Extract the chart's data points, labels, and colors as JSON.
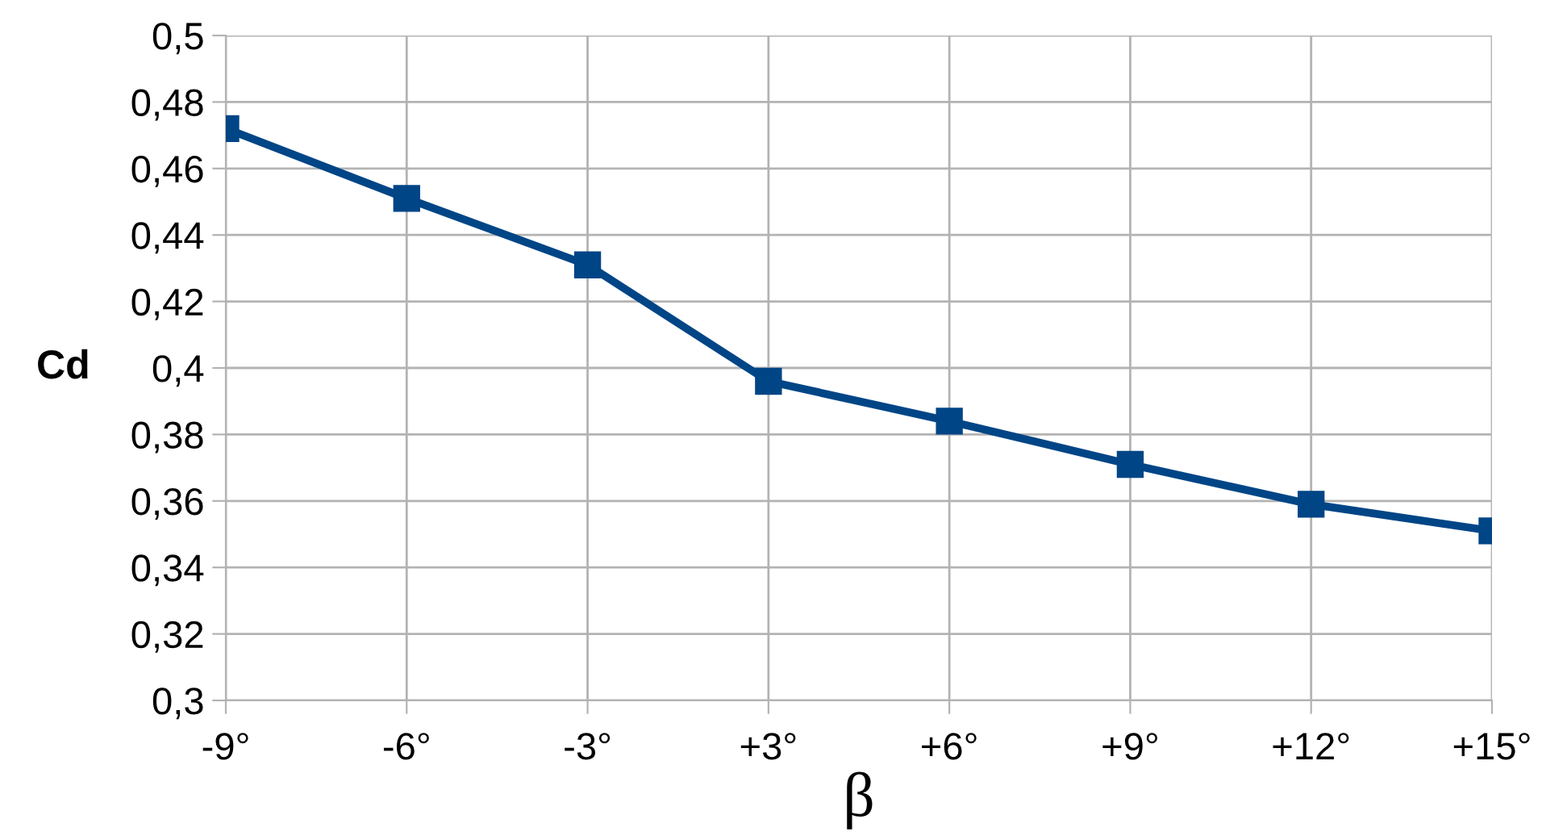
{
  "chart_data": {
    "type": "line",
    "xlabel": "β",
    "ylabel": "Cd",
    "categories": [
      "-9°",
      "-6°",
      "-3°",
      "+3°",
      "+6°",
      "+9°",
      "+12°",
      "+15°"
    ],
    "series": [
      {
        "color": "#004586",
        "values": [
          0.472,
          0.451,
          0.431,
          0.396,
          0.384,
          0.371,
          0.359,
          0.351
        ]
      }
    ],
    "ylim": [
      0.3,
      0.5
    ],
    "yticks": [
      {
        "value": 0.3,
        "label": "0,3"
      },
      {
        "value": 0.32,
        "label": "0,32"
      },
      {
        "value": 0.34,
        "label": "0,34"
      },
      {
        "value": 0.36,
        "label": "0,36"
      },
      {
        "value": 0.38,
        "label": "0,38"
      },
      {
        "value": 0.4,
        "label": "0,4"
      },
      {
        "value": 0.42,
        "label": "0,42"
      },
      {
        "value": 0.44,
        "label": "0,44"
      },
      {
        "value": 0.46,
        "label": "0,46"
      },
      {
        "value": 0.48,
        "label": "0,48"
      },
      {
        "value": 0.5,
        "label": "0,5"
      }
    ],
    "grid": true,
    "marker": "square",
    "line_style": "solid",
    "legend": false
  }
}
